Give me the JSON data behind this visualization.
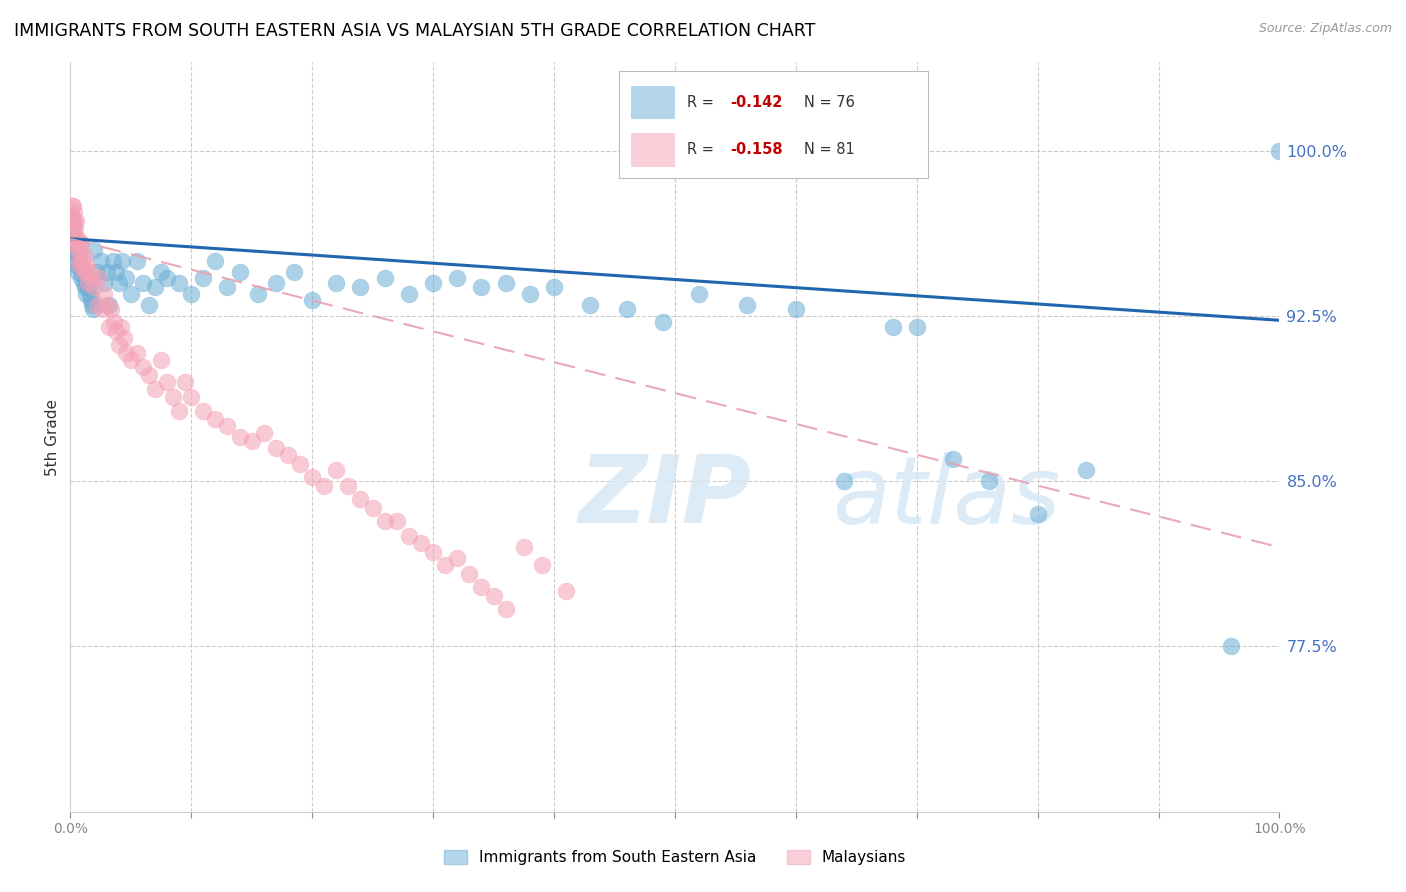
{
  "title": "IMMIGRANTS FROM SOUTH EASTERN ASIA VS MALAYSIAN 5TH GRADE CORRELATION CHART",
  "source": "Source: ZipAtlas.com",
  "ylabel": "5th Grade",
  "ytick_labels": [
    "77.5%",
    "85.0%",
    "92.5%",
    "100.0%"
  ],
  "ytick_values": [
    0.775,
    0.85,
    0.925,
    1.0
  ],
  "ymin": 0.7,
  "ymax": 1.04,
  "xmin": 0.0,
  "xmax": 1.0,
  "blue_color": "#6baed6",
  "pink_color": "#f4a0b5",
  "blue_edge_color": "#4393c3",
  "pink_edge_color": "#e07090",
  "blue_trend_color": "#2166ac",
  "pink_trend_color": "#e8a0b0",
  "watermark_color": "#d6e8f5",
  "blue_r": "-0.142",
  "blue_n": "76",
  "pink_r": "-0.158",
  "pink_n": "81",
  "legend_label_blue": "Immigrants from South Eastern Asia",
  "legend_label_pink": "Malaysians",
  "blue_trend_start_y": 0.96,
  "blue_trend_end_y": 0.923,
  "pink_trend_start_y": 0.96,
  "pink_trend_end_y": 0.82,
  "xtick_positions": [
    0.0,
    0.1,
    0.2,
    0.3,
    0.4,
    0.5,
    0.6,
    0.7,
    0.8,
    0.9,
    1.0
  ],
  "xtick_labels": [
    "0.0%",
    "",
    "",
    "",
    "",
    "",
    "",
    "",
    "",
    "",
    "100.0%"
  ],
  "grid_x": [
    0.1,
    0.2,
    0.3,
    0.4,
    0.5,
    0.6,
    0.7,
    0.8,
    0.9
  ],
  "blue_x": [
    0.001,
    0.002,
    0.002,
    0.003,
    0.003,
    0.004,
    0.004,
    0.005,
    0.005,
    0.006,
    0.007,
    0.008,
    0.009,
    0.01,
    0.011,
    0.012,
    0.013,
    0.014,
    0.015,
    0.016,
    0.017,
    0.018,
    0.019,
    0.02,
    0.022,
    0.025,
    0.028,
    0.03,
    0.032,
    0.035,
    0.038,
    0.04,
    0.043,
    0.046,
    0.05,
    0.055,
    0.06,
    0.065,
    0.07,
    0.075,
    0.08,
    0.09,
    0.1,
    0.11,
    0.12,
    0.13,
    0.14,
    0.155,
    0.17,
    0.185,
    0.2,
    0.22,
    0.24,
    0.26,
    0.28,
    0.3,
    0.32,
    0.34,
    0.36,
    0.38,
    0.4,
    0.43,
    0.46,
    0.49,
    0.52,
    0.56,
    0.6,
    0.64,
    0.68,
    0.7,
    0.73,
    0.76,
    0.8,
    0.84,
    0.96,
    1.0
  ],
  "blue_y": [
    0.97,
    0.965,
    0.96,
    0.958,
    0.955,
    0.96,
    0.955,
    0.95,
    0.948,
    0.945,
    0.952,
    0.948,
    0.942,
    0.945,
    0.94,
    0.938,
    0.935,
    0.94,
    0.938,
    0.935,
    0.932,
    0.93,
    0.928,
    0.955,
    0.945,
    0.95,
    0.94,
    0.945,
    0.93,
    0.95,
    0.945,
    0.94,
    0.95,
    0.942,
    0.935,
    0.95,
    0.94,
    0.93,
    0.938,
    0.945,
    0.942,
    0.94,
    0.935,
    0.942,
    0.95,
    0.938,
    0.945,
    0.935,
    0.94,
    0.945,
    0.932,
    0.94,
    0.938,
    0.942,
    0.935,
    0.94,
    0.942,
    0.938,
    0.94,
    0.935,
    0.938,
    0.93,
    0.928,
    0.922,
    0.935,
    0.93,
    0.928,
    0.85,
    0.92,
    0.92,
    0.86,
    0.85,
    0.835,
    0.855,
    0.775,
    1.0
  ],
  "pink_x": [
    0.001,
    0.001,
    0.002,
    0.002,
    0.002,
    0.003,
    0.003,
    0.003,
    0.004,
    0.004,
    0.005,
    0.005,
    0.006,
    0.006,
    0.007,
    0.007,
    0.008,
    0.008,
    0.009,
    0.01,
    0.011,
    0.012,
    0.013,
    0.014,
    0.015,
    0.016,
    0.018,
    0.02,
    0.022,
    0.024,
    0.026,
    0.028,
    0.03,
    0.032,
    0.034,
    0.036,
    0.038,
    0.04,
    0.042,
    0.044,
    0.046,
    0.05,
    0.055,
    0.06,
    0.065,
    0.07,
    0.075,
    0.08,
    0.085,
    0.09,
    0.095,
    0.1,
    0.11,
    0.12,
    0.13,
    0.14,
    0.15,
    0.16,
    0.17,
    0.18,
    0.19,
    0.2,
    0.21,
    0.22,
    0.23,
    0.24,
    0.25,
    0.26,
    0.27,
    0.28,
    0.29,
    0.3,
    0.31,
    0.32,
    0.33,
    0.34,
    0.35,
    0.36,
    0.375,
    0.39,
    0.41
  ],
  "pink_y": [
    0.975,
    0.97,
    0.975,
    0.968,
    0.965,
    0.972,
    0.968,
    0.96,
    0.965,
    0.958,
    0.968,
    0.96,
    0.955,
    0.96,
    0.95,
    0.958,
    0.955,
    0.948,
    0.958,
    0.95,
    0.945,
    0.952,
    0.948,
    0.945,
    0.94,
    0.945,
    0.942,
    0.938,
    0.93,
    0.942,
    0.928,
    0.935,
    0.93,
    0.92,
    0.928,
    0.922,
    0.918,
    0.912,
    0.92,
    0.915,
    0.908,
    0.905,
    0.908,
    0.902,
    0.898,
    0.892,
    0.905,
    0.895,
    0.888,
    0.882,
    0.895,
    0.888,
    0.882,
    0.878,
    0.875,
    0.87,
    0.868,
    0.872,
    0.865,
    0.862,
    0.858,
    0.852,
    0.848,
    0.855,
    0.848,
    0.842,
    0.838,
    0.832,
    0.832,
    0.825,
    0.822,
    0.818,
    0.812,
    0.815,
    0.808,
    0.802,
    0.798,
    0.792,
    0.82,
    0.812,
    0.8
  ]
}
